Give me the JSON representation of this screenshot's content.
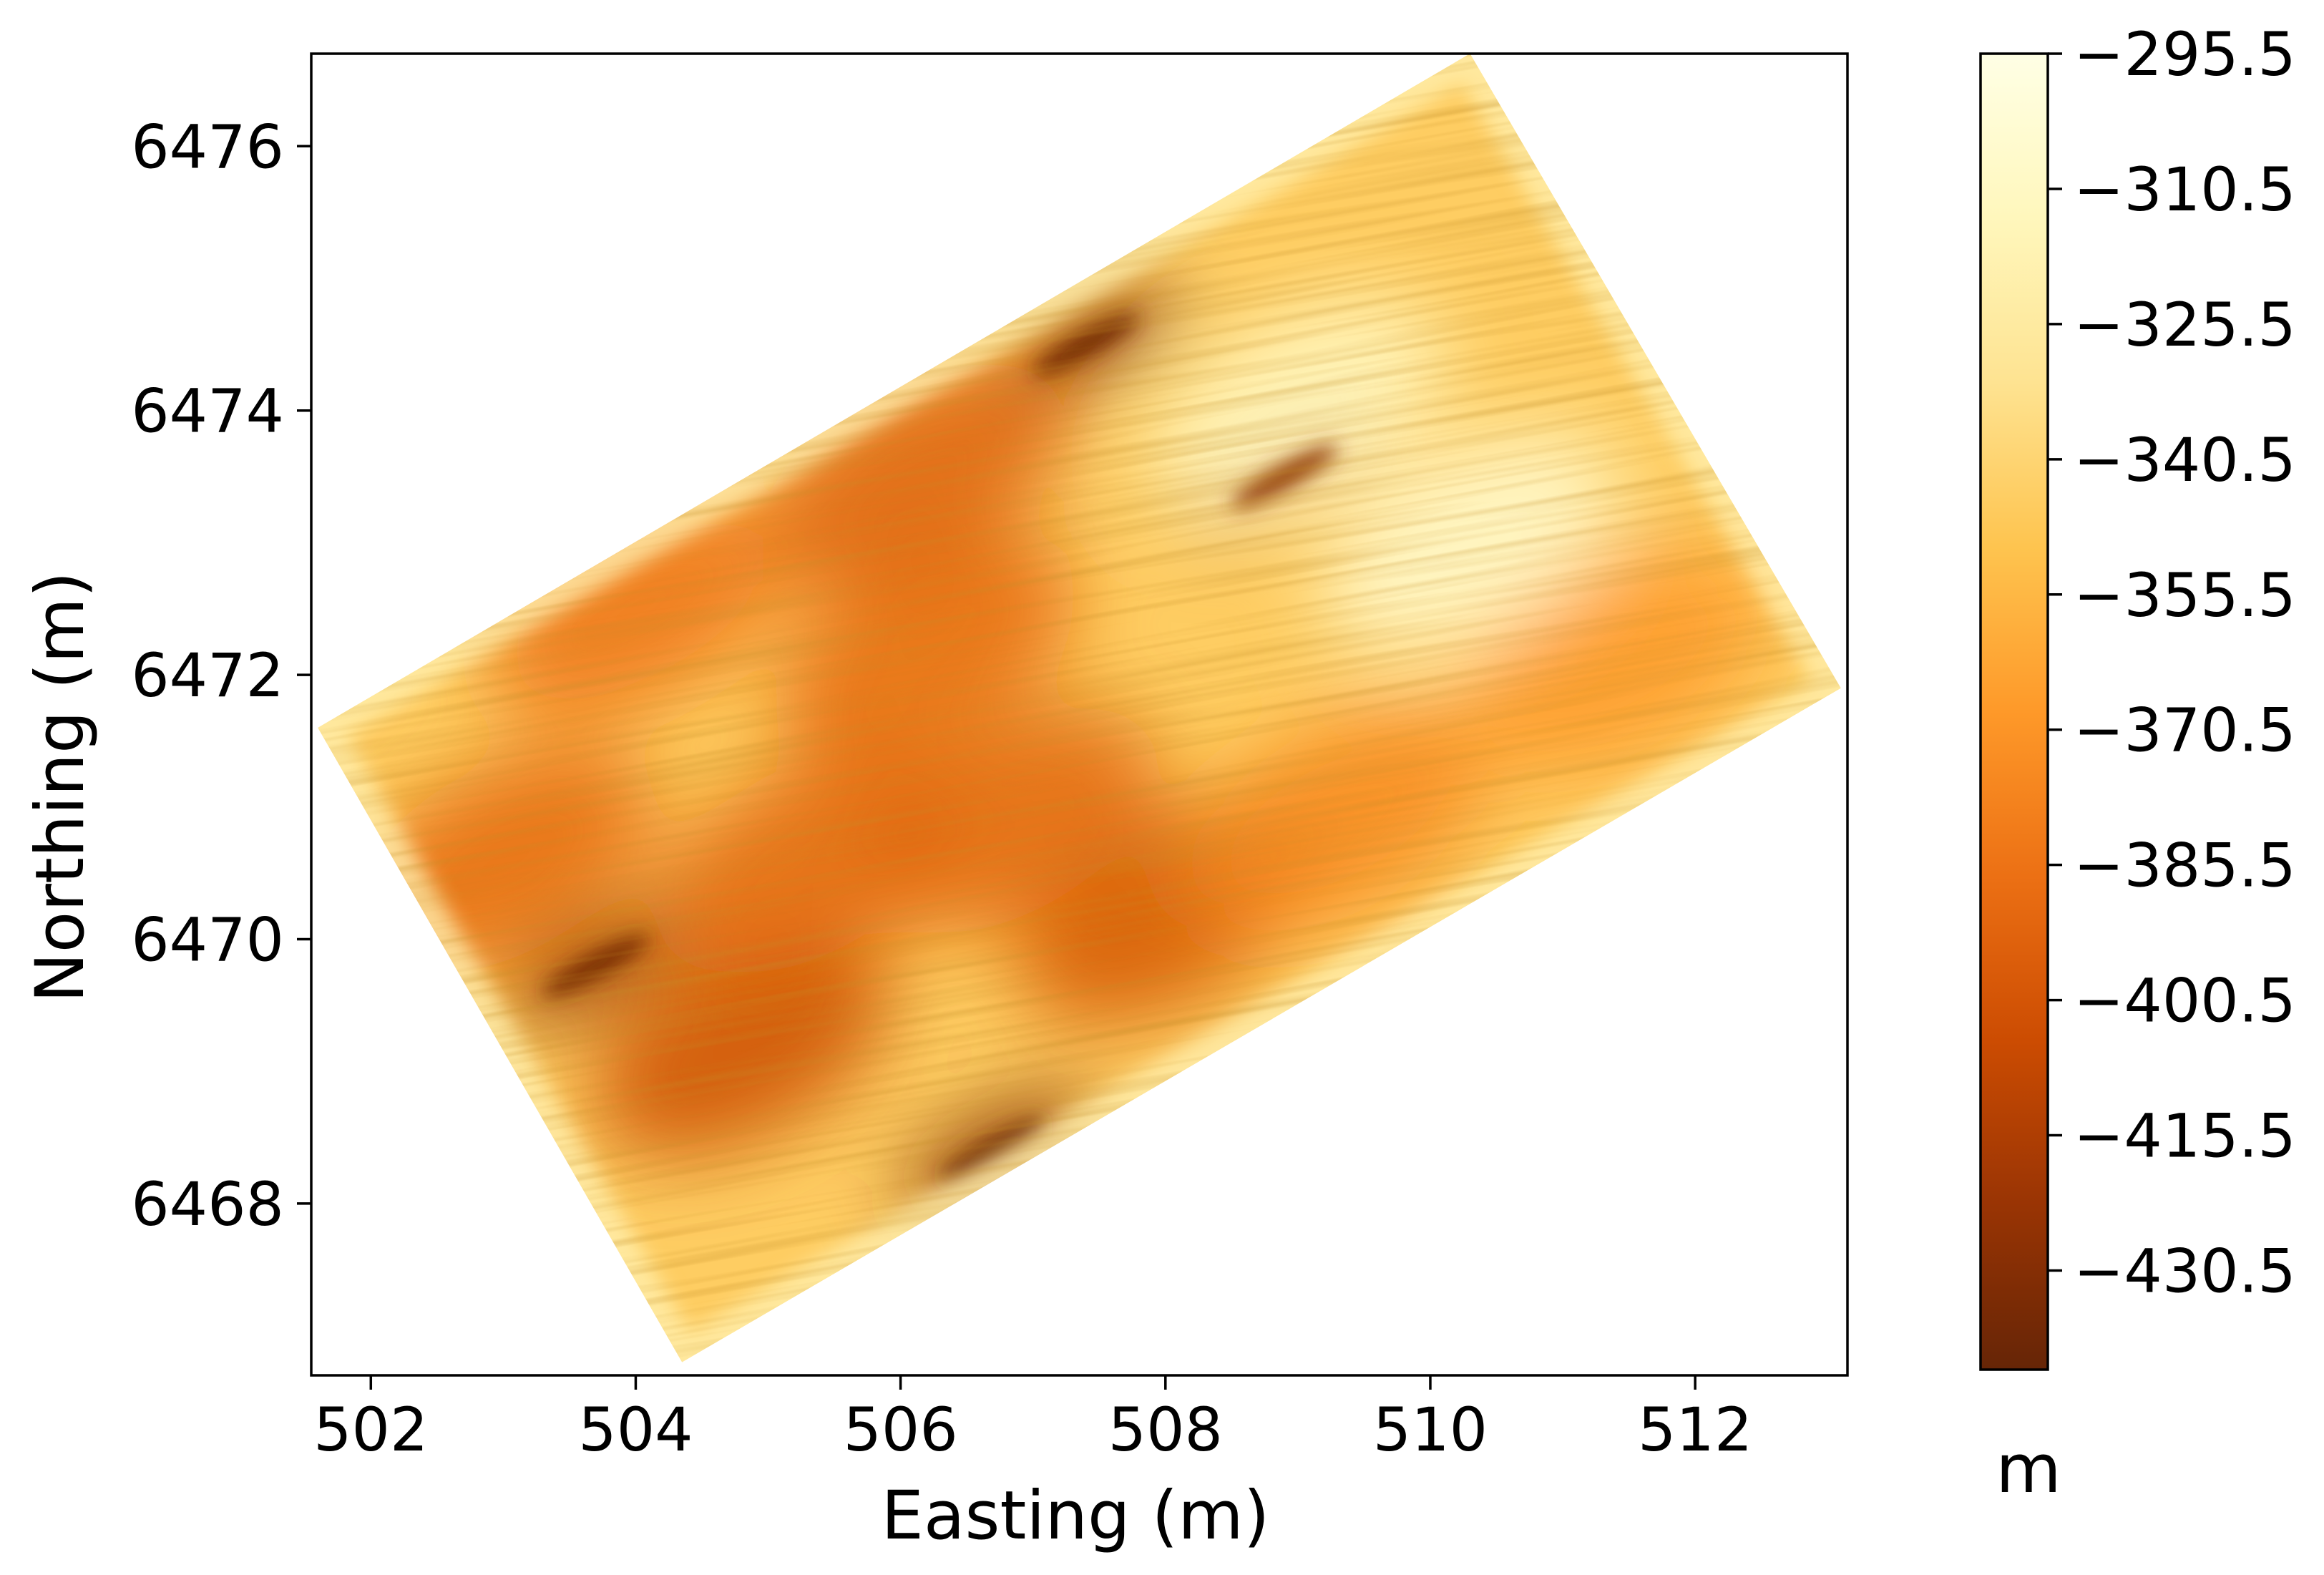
{
  "chart_data": {
    "type": "heatmap",
    "title": "",
    "xlabel": "Easting (m)",
    "ylabel": "Northing (m)",
    "xlim": [
      501.55,
      513.15
    ],
    "ylim": [
      6466.7,
      6476.7
    ],
    "x_ticks": [
      502,
      504,
      506,
      508,
      510,
      512
    ],
    "y_ticks": [
      6468,
      6470,
      6472,
      6474,
      6476
    ],
    "grid": false,
    "colormap": "YlOrBr_r",
    "colorbar": {
      "label": "m",
      "min": -441.5,
      "max": -295.5,
      "ticks": [
        -295.5,
        -310.5,
        -325.5,
        -340.5,
        -355.5,
        -370.5,
        -385.5,
        -400.5,
        -415.5,
        -430.5
      ],
      "colors": [
        "#662506",
        "#993404",
        "#cc4c02",
        "#ec7014",
        "#fe9929",
        "#fec44f",
        "#fee391",
        "#fff7bc",
        "#ffffe5"
      ]
    },
    "survey_area": {
      "corners": [
        [
          501.6,
          6471.6
        ],
        [
          510.3,
          6476.7
        ],
        [
          513.1,
          6471.9
        ],
        [
          504.35,
          6466.8
        ]
      ]
    },
    "anomalies": [
      {
        "x": 507.4,
        "y": 6474.5,
        "value": -430
      },
      {
        "x": 508.9,
        "y": 6473.5,
        "value": -420
      },
      {
        "x": 503.7,
        "y": 6469.8,
        "value": -428
      },
      {
        "x": 506.7,
        "y": 6468.4,
        "value": -432
      },
      {
        "x": 504.8,
        "y": 6469.2,
        "value": -405
      },
      {
        "x": 508.0,
        "y": 6470.2,
        "value": -400
      },
      {
        "x": 506.2,
        "y": 6472.2,
        "value": -390
      },
      {
        "x": 504.0,
        "y": 6472.5,
        "value": -385
      },
      {
        "x": 503.0,
        "y": 6470.6,
        "value": -390
      },
      {
        "x": 506.8,
        "y": 6470.9,
        "value": -392
      },
      {
        "x": 509.3,
        "y": 6470.9,
        "value": -375
      },
      {
        "x": 511.4,
        "y": 6472.1,
        "value": -368
      },
      {
        "x": 506.1,
        "y": 6473.5,
        "value": -395
      },
      {
        "x": 505.3,
        "y": 6470.6,
        "value": -392
      },
      {
        "x": 510.3,
        "y": 6473.0,
        "value": -305
      },
      {
        "x": 509.0,
        "y": 6474.0,
        "value": -310
      }
    ]
  }
}
